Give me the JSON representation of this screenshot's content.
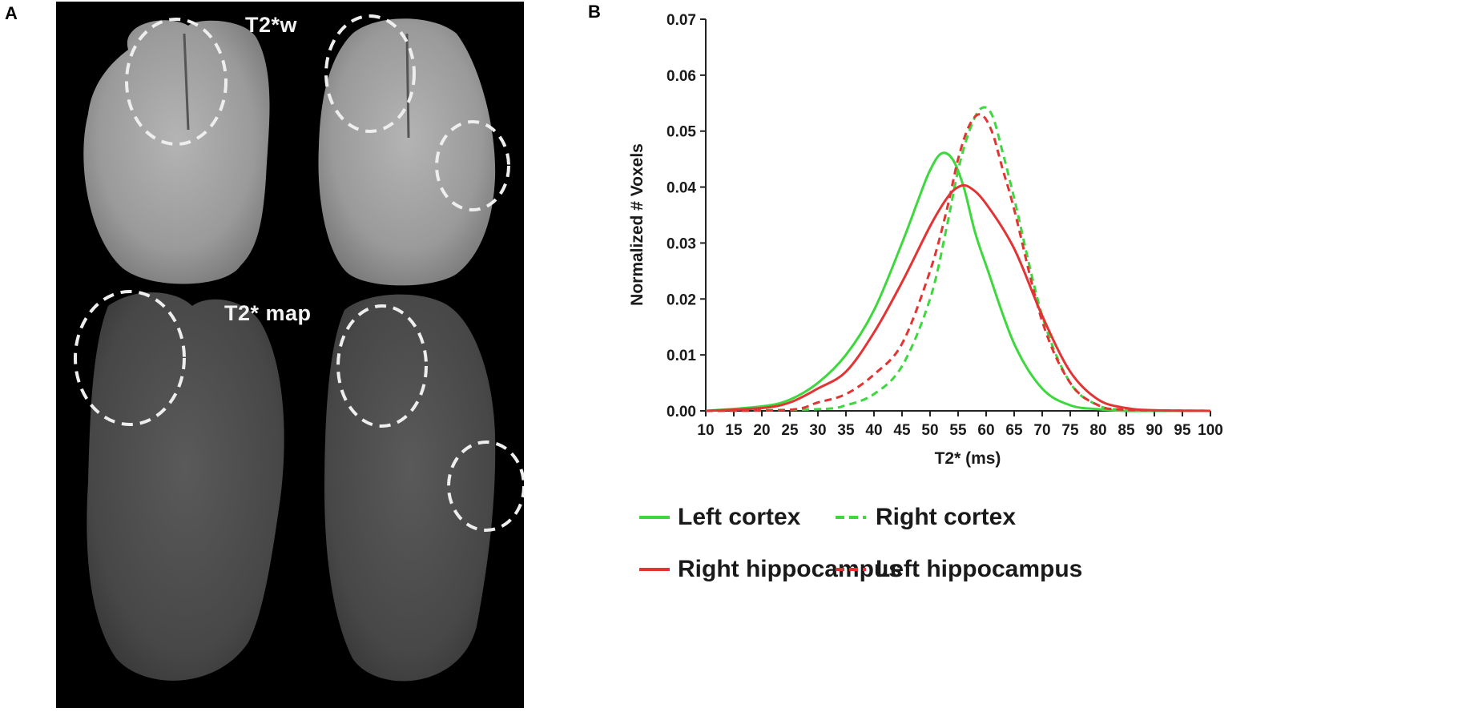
{
  "panel_a": {
    "label": "A",
    "top_title": "T2*w",
    "bottom_title": "T2* map"
  },
  "panel_b": {
    "label": "B"
  },
  "chart_data": {
    "type": "line",
    "xlabel": "T2* (ms)",
    "ylabel": "Normalized # Voxels",
    "xlim": [
      10,
      100
    ],
    "ylim": [
      0,
      0.07
    ],
    "xticks": [
      "10",
      "15",
      "20",
      "25",
      "30",
      "35",
      "40",
      "45",
      "50",
      "55",
      "60",
      "65",
      "70",
      "75",
      "80",
      "85",
      "90",
      "95",
      "100"
    ],
    "yticks": [
      "0.00",
      "0.01",
      "0.02",
      "0.03",
      "0.04",
      "0.05",
      "0.06",
      "0.07"
    ],
    "grid": false,
    "legend_position": "bottom",
    "series": [
      {
        "name": "Left cortex",
        "color": "#3dd83d",
        "dash": "solid",
        "x": [
          10,
          20,
          25,
          30,
          35,
          40,
          45,
          48,
          50,
          52,
          54,
          56,
          58,
          60,
          65,
          70,
          75,
          80,
          85,
          90,
          100
        ],
        "values": [
          0,
          0.0008,
          0.002,
          0.005,
          0.01,
          0.018,
          0.03,
          0.038,
          0.043,
          0.046,
          0.045,
          0.04,
          0.032,
          0.026,
          0.012,
          0.004,
          0.001,
          0.0003,
          0,
          0,
          0
        ]
      },
      {
        "name": "Right cortex",
        "color": "#3dd83d",
        "dash": "dashed",
        "x": [
          10,
          30,
          35,
          40,
          45,
          50,
          53,
          55,
          57,
          59,
          61,
          63,
          65,
          70,
          75,
          80,
          85,
          100
        ],
        "values": [
          0,
          0.0003,
          0.001,
          0.003,
          0.008,
          0.02,
          0.033,
          0.043,
          0.05,
          0.054,
          0.053,
          0.046,
          0.038,
          0.017,
          0.005,
          0.001,
          0.0002,
          0
        ]
      },
      {
        "name": "Right hippocampus",
        "color": "#e23434",
        "dash": "solid",
        "x": [
          10,
          20,
          25,
          30,
          35,
          40,
          45,
          50,
          53,
          55,
          57,
          60,
          65,
          70,
          75,
          80,
          85,
          90,
          100
        ],
        "values": [
          0,
          0.0005,
          0.0015,
          0.004,
          0.007,
          0.014,
          0.023,
          0.033,
          0.038,
          0.04,
          0.04,
          0.037,
          0.029,
          0.017,
          0.007,
          0.002,
          0.0005,
          0.0001,
          0
        ]
      },
      {
        "name": "Left hippocampus",
        "color": "#e23434",
        "dash": "dashed",
        "x": [
          10,
          25,
          30,
          35,
          40,
          45,
          50,
          53,
          55,
          57,
          59,
          61,
          63,
          65,
          70,
          75,
          80,
          85,
          100
        ],
        "values": [
          0,
          0.0002,
          0.0015,
          0.003,
          0.0065,
          0.012,
          0.025,
          0.036,
          0.045,
          0.051,
          0.053,
          0.05,
          0.043,
          0.036,
          0.016,
          0.005,
          0.001,
          0.0002,
          0
        ]
      }
    ]
  }
}
